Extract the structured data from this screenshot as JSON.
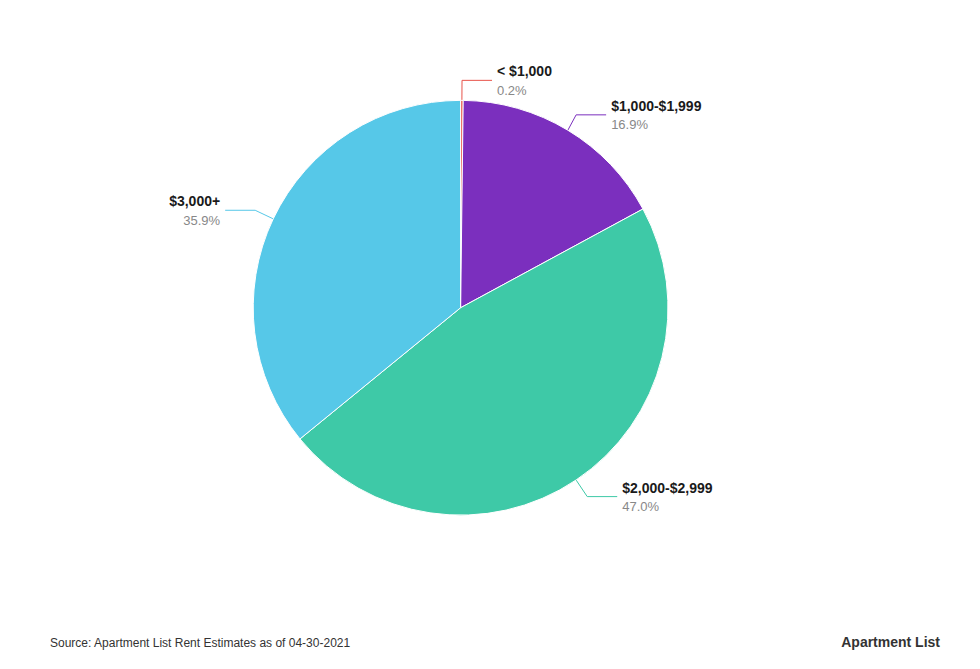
{
  "chart_data": {
    "type": "pie",
    "categories": [
      "< $1,000",
      "$1,000-$1,999",
      "$2,000-$2,999",
      "$3,000+"
    ],
    "values": [
      0.2,
      16.9,
      47.0,
      35.9
    ],
    "value_labels": [
      "0.2%",
      "16.9%",
      "47.0%",
      "35.9%"
    ],
    "colors": [
      "#E8534A",
      "#7B2FBE",
      "#3EC9A7",
      "#56C8E8"
    ],
    "data_labels": true,
    "annotations": [
      "Source: Apartment List Rent Estimates as of 04-30-2021",
      "Apartment",
      "List"
    ]
  }
}
